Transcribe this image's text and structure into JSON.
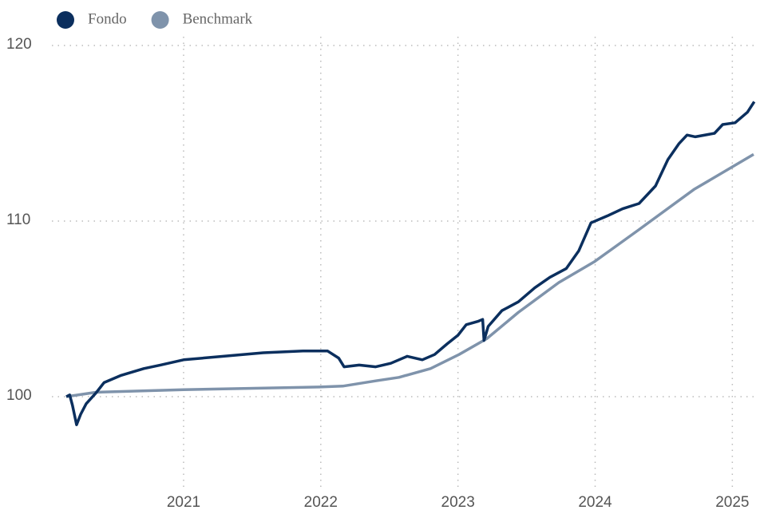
{
  "chart_data": {
    "type": "line",
    "xlim": [
      2020.04,
      2025.19
    ],
    "xticks": [
      2021,
      2022,
      2023,
      2024,
      2025
    ],
    "ylim": [
      95,
      120.5
    ],
    "yticks": [
      100,
      110,
      120
    ],
    "grid": true,
    "legend": "top-left",
    "series": [
      {
        "name": "Fondo",
        "color": "#0b2f5e",
        "x": [
          2020.145,
          2020.17,
          2020.19,
          2020.22,
          2020.25,
          2020.29,
          2020.36,
          2020.42,
          2020.54,
          2020.71,
          2020.83,
          2021.0,
          2021.29,
          2021.58,
          2021.87,
          2022.05,
          2022.13,
          2022.17,
          2022.28,
          2022.4,
          2022.51,
          2022.63,
          2022.74,
          2022.83,
          2022.92,
          2023.0,
          2023.06,
          2023.15,
          2023.18,
          2023.19,
          2023.22,
          2023.32,
          2023.44,
          2023.56,
          2023.67,
          2023.79,
          2023.88,
          2023.97,
          2024.09,
          2024.2,
          2024.32,
          2024.44,
          2024.53,
          2024.61,
          2024.67,
          2024.73,
          2024.87,
          2024.93,
          2025.02,
          2025.11,
          2025.16
        ],
        "values": [
          100.0,
          100.1,
          99.5,
          98.4,
          99.0,
          99.6,
          100.2,
          100.8,
          101.2,
          101.6,
          101.8,
          102.1,
          102.3,
          102.5,
          102.6,
          102.6,
          102.2,
          101.7,
          101.8,
          101.7,
          101.9,
          102.3,
          102.1,
          102.4,
          103.0,
          103.5,
          104.1,
          104.3,
          104.4,
          103.2,
          104.0,
          104.9,
          105.4,
          106.2,
          106.8,
          107.3,
          108.3,
          109.9,
          110.3,
          110.7,
          111.0,
          112.0,
          113.5,
          114.4,
          114.9,
          114.8,
          115.0,
          115.5,
          115.6,
          116.2,
          116.8
        ]
      },
      {
        "name": "Benchmark",
        "color": "#7f93ab",
        "x": [
          2020.145,
          2020.36,
          2021.0,
          2021.99,
          2022.16,
          2022.4,
          2022.57,
          2022.8,
          2023.008,
          2023.21,
          2023.44,
          2023.735,
          2023.997,
          2024.317,
          2024.72,
          2025.155
        ],
        "values": [
          100.0,
          100.25,
          100.4,
          100.55,
          100.6,
          100.9,
          101.1,
          101.6,
          102.4,
          103.3,
          104.8,
          106.5,
          107.7,
          109.5,
          111.8,
          113.8
        ]
      }
    ]
  }
}
